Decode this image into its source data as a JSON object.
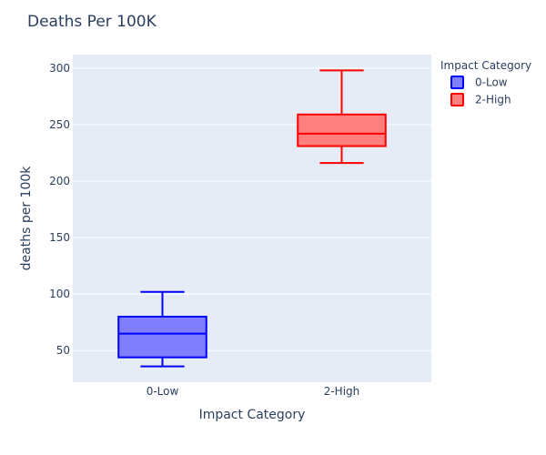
{
  "chart_data": {
    "type": "box",
    "title": "Deaths Per 100K",
    "xlabel": "Impact Category",
    "ylabel": "deaths per 100k",
    "categories": [
      "0-Low",
      "2-High"
    ],
    "ylim": [
      22,
      312
    ],
    "yticks": [
      50,
      100,
      150,
      200,
      250,
      300
    ],
    "grid": true,
    "legend": {
      "title": "Impact Category",
      "placement": "top-right",
      "entries": [
        "0-Low",
        "2-High"
      ]
    },
    "series": [
      {
        "name": "0-Low",
        "category": "0-Low",
        "min": 36,
        "q1": 44,
        "median": 65,
        "q3": 80,
        "max": 102,
        "color": "#0000ff",
        "fill": "#7f7fff"
      },
      {
        "name": "2-High",
        "category": "2-High",
        "min": 216,
        "q1": 231,
        "median": 242,
        "q3": 259,
        "max": 298,
        "color": "#ff0000",
        "fill": "#ff7f7f"
      }
    ]
  }
}
